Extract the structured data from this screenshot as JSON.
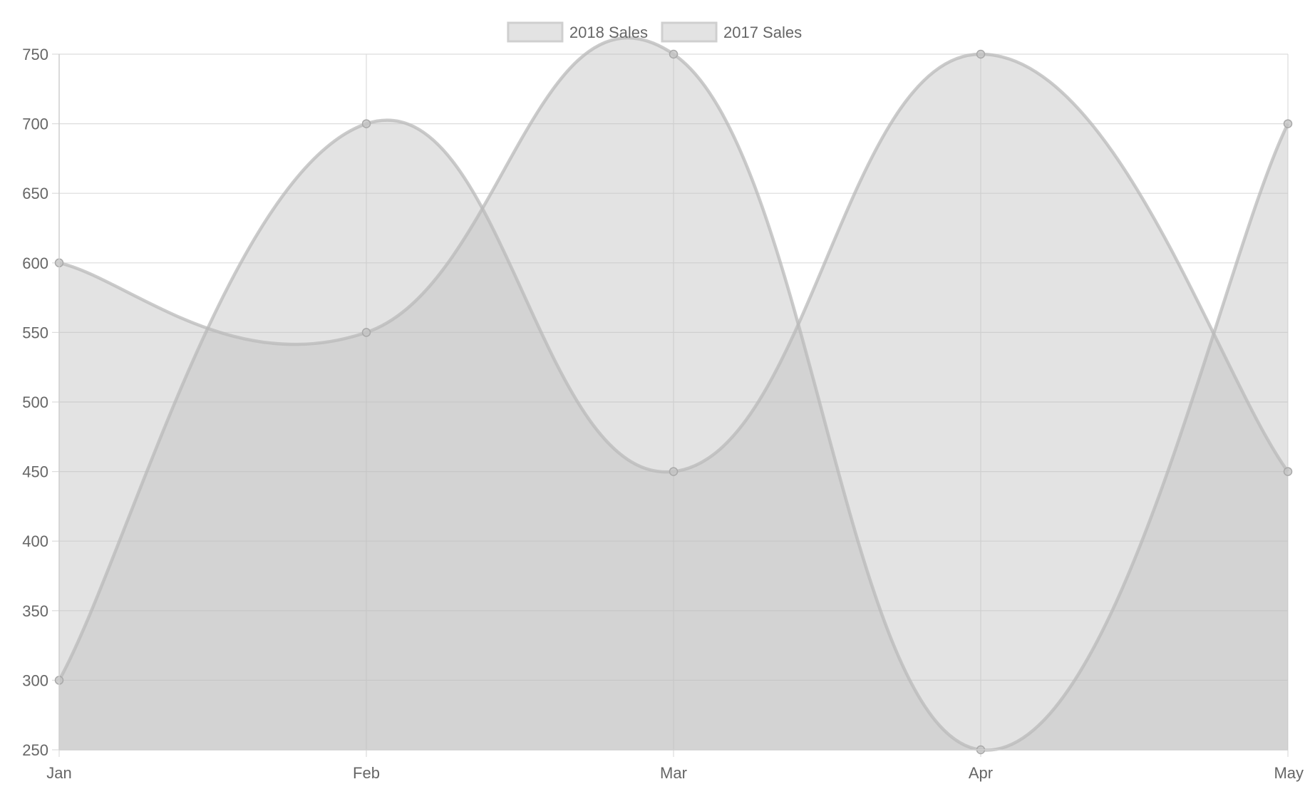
{
  "chart_data": {
    "type": "area",
    "categories": [
      "Jan",
      "Feb",
      "Mar",
      "Apr",
      "May"
    ],
    "series": [
      {
        "name": "2018 Sales",
        "values": [
          300,
          700,
          450,
          750,
          450
        ]
      },
      {
        "name": "2017 Sales",
        "values": [
          600,
          550,
          750,
          250,
          700
        ]
      }
    ],
    "ylim": [
      250,
      750
    ],
    "yticks": [
      750,
      700,
      650,
      600,
      550,
      500,
      450,
      400,
      350,
      300,
      250
    ],
    "grid": true,
    "legend_position": "top-center",
    "curve": "smooth",
    "colors": {
      "fill": "#bdbdbd",
      "line": "#b9b9b9",
      "grid": "#dcdcdc",
      "text": "#666666"
    }
  }
}
